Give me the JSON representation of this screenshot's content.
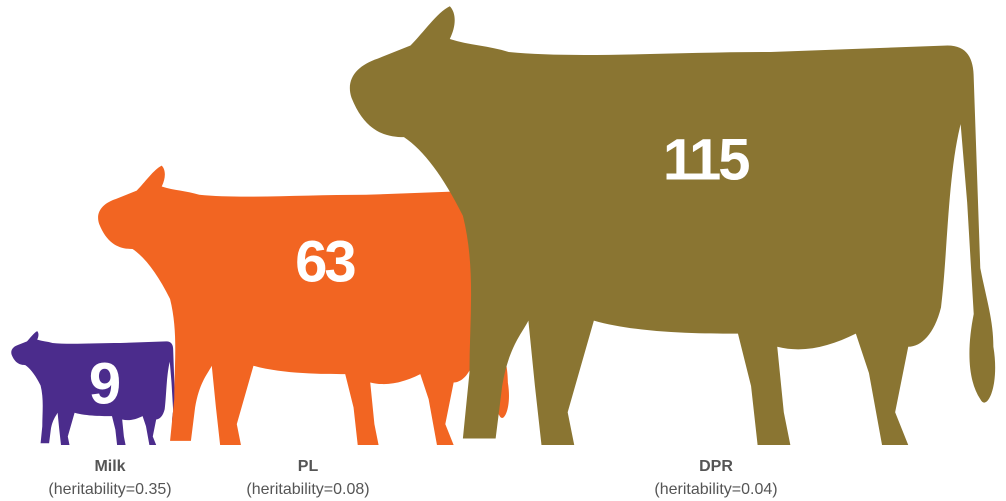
{
  "chart_data": {
    "type": "pictograph",
    "categories": [
      "Milk",
      "PL",
      "DPR"
    ],
    "notes": [
      "(heritability=0.35)",
      "(heritability=0.08)",
      "(heritability=0.04)"
    ],
    "values": [
      9,
      63,
      115
    ],
    "colors": [
      "#4b2c8c",
      "#f26522",
      "#8a7532"
    ]
  }
}
